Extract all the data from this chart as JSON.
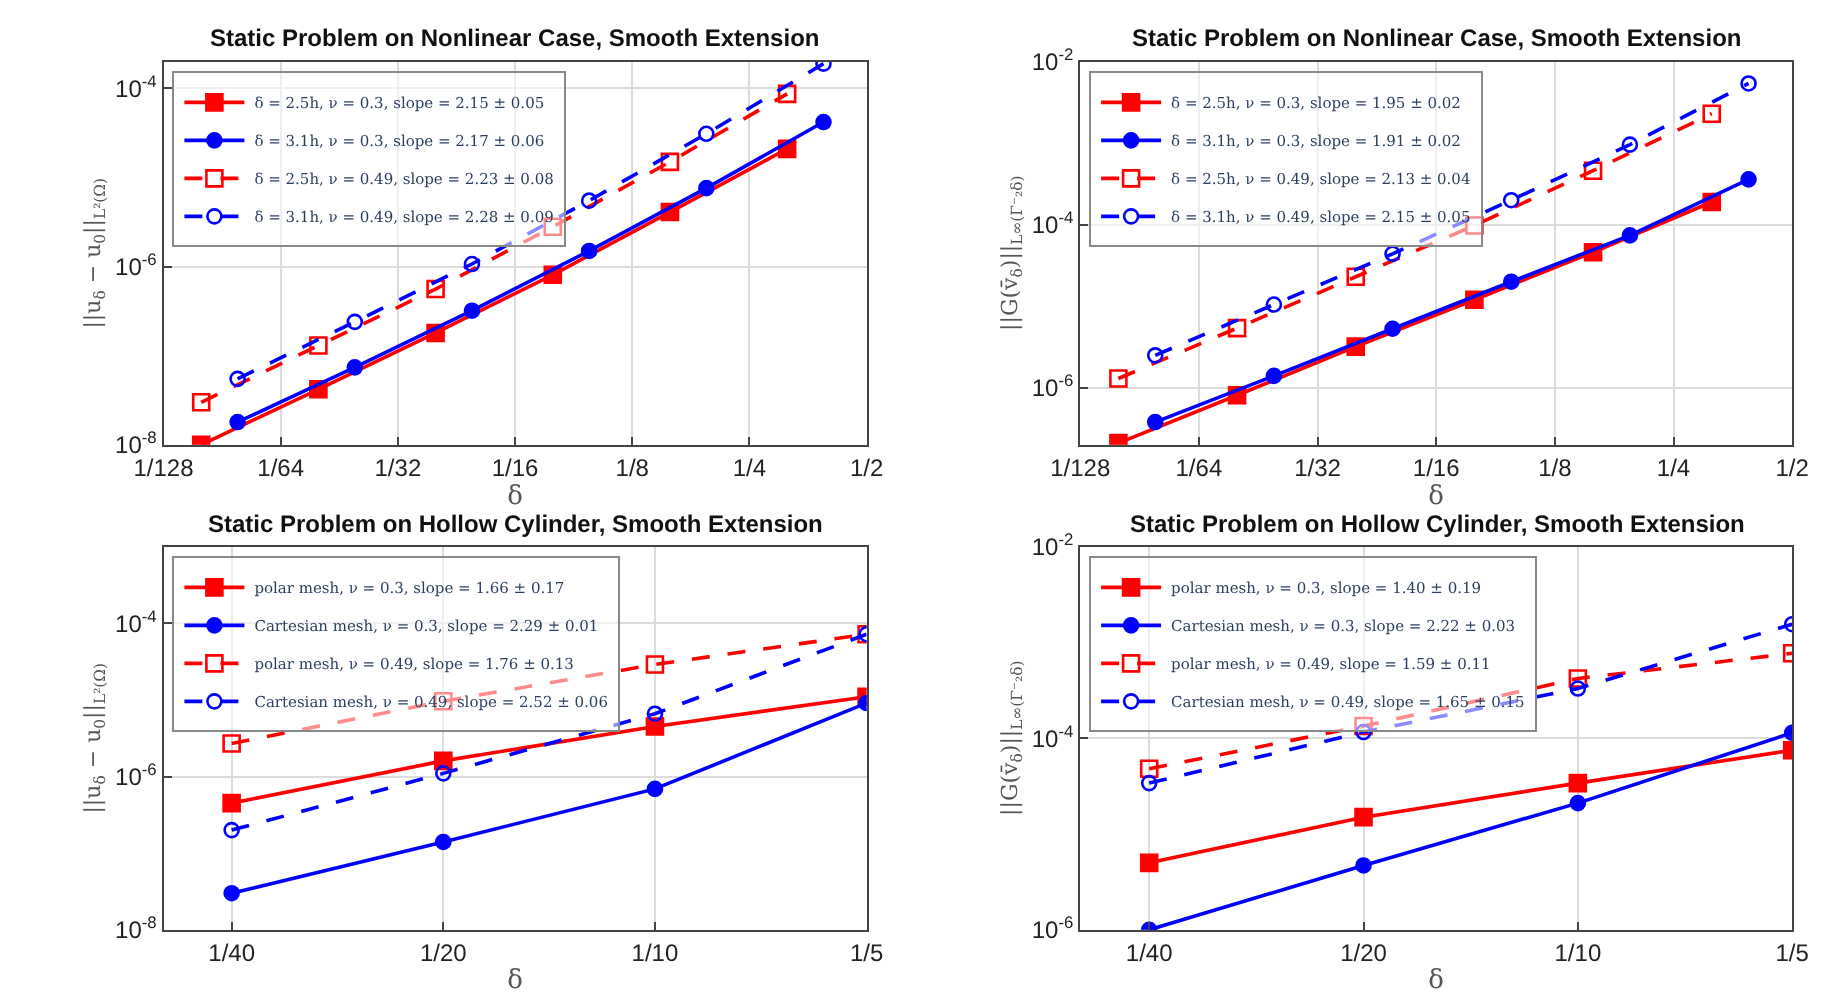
{
  "chart_data": [
    {
      "type": "line",
      "title": "Static Problem on Nonlinear Case, Smooth Extension",
      "xlabel": "δ",
      "ylabel": "||u$_{δ}$ − u$_{0}$||$_{L²(Ω)}$",
      "log": "xy",
      "grid": true,
      "legend": "top left",
      "xlim": [
        0.0078125,
        0.5
      ],
      "xticks": [
        {
          "value": 0.0078125,
          "label": "1/128"
        },
        {
          "value": 0.015625,
          "label": "1/64"
        },
        {
          "value": 0.03125,
          "label": "1/32"
        },
        {
          "value": 0.0625,
          "label": "1/16"
        },
        {
          "value": 0.125,
          "label": "1/8"
        },
        {
          "value": 0.25,
          "label": "1/4"
        },
        {
          "value": 0.5,
          "label": "1/2"
        }
      ],
      "ylim": [
        1e-08,
        0.0002
      ],
      "yticks": [
        {
          "value": 1e-08,
          "label": "10$^{-8}$"
        },
        {
          "value": 1e-06,
          "label": "10$^{-6}$"
        },
        {
          "value": 0.0001,
          "label": "10$^{-4}$"
        }
      ],
      "series": [
        {
          "name": "δ = 2.5h, ν = 0.3, slope = 2.15 ± 0.05",
          "color": "#ff0000",
          "marker": "square",
          "line_style": "solid",
          "x": [
            0.009765625,
            0.01953125,
            0.0390625,
            0.078125,
            0.15625,
            0.3125
          ],
          "values": [
            1e-08,
            4.2e-08,
            1.8e-07,
            8.1e-07,
            4.1e-06,
            2.1e-05
          ]
        },
        {
          "name": "δ = 3.1h, ν = 0.3, slope = 2.17 ± 0.06",
          "color": "#0000ff",
          "marker": "circle",
          "line_style": "solid",
          "x": [
            0.012109375,
            0.02421875,
            0.0484375,
            0.096875,
            0.19375,
            0.3875
          ],
          "values": [
            1.8e-08,
            7.4e-08,
            3.2e-07,
            1.5e-06,
            7.6e-06,
            4.2e-05
          ]
        },
        {
          "name": "δ = 2.5h, ν = 0.49, slope = 2.23 ± 0.08",
          "color": "#ff0000",
          "marker": "square",
          "line_style": "dashed",
          "x": [
            0.009765625,
            0.01953125,
            0.0390625,
            0.078125,
            0.15625,
            0.3125
          ],
          "values": [
            3e-08,
            1.3e-07,
            5.6e-07,
            2.8e-06,
            1.5e-05,
            8.7e-05
          ]
        },
        {
          "name": "δ = 3.1h, ν = 0.49, slope = 2.28 ± 0.09",
          "color": "#0000ff",
          "marker": "circle",
          "line_style": "dashed",
          "x": [
            0.012109375,
            0.02421875,
            0.0484375,
            0.096875,
            0.19375,
            0.3875
          ],
          "values": [
            5.5e-08,
            2.4e-07,
            1.07e-06,
            5.5e-06,
            3.1e-05,
            0.00019
          ]
        }
      ]
    },
    {
      "type": "line",
      "title": "Static Problem on Nonlinear Case, Smooth Extension",
      "xlabel": "δ",
      "ylabel": "||G(v̄$_{δ}$)||$_{L∞(Γ⁻₂δ)}$",
      "log": "xy",
      "grid": true,
      "legend": "top left",
      "xlim": [
        0.0078125,
        0.5
      ],
      "xticks": [
        {
          "value": 0.0078125,
          "label": "1/128"
        },
        {
          "value": 0.015625,
          "label": "1/64"
        },
        {
          "value": 0.03125,
          "label": "1/32"
        },
        {
          "value": 0.0625,
          "label": "1/16"
        },
        {
          "value": 0.125,
          "label": "1/8"
        },
        {
          "value": 0.25,
          "label": "1/4"
        },
        {
          "value": 0.5,
          "label": "1/2"
        }
      ],
      "ylim": [
        2e-07,
        0.01
      ],
      "yticks": [
        {
          "value": 1e-06,
          "label": "10$^{-6}$"
        },
        {
          "value": 0.0001,
          "label": "10$^{-4}$"
        },
        {
          "value": 0.01,
          "label": "10$^{-2}$"
        }
      ],
      "series": [
        {
          "name": "δ = 2.5h, ν = 0.3, slope = 1.95 ± 0.02",
          "color": "#ff0000",
          "marker": "square",
          "line_style": "solid",
          "x": [
            0.009765625,
            0.01953125,
            0.0390625,
            0.078125,
            0.15625,
            0.3125
          ],
          "values": [
            2.1e-07,
            8.1e-07,
            3.2e-06,
            1.2e-05,
            4.6e-05,
            0.00019
          ]
        },
        {
          "name": "δ = 3.1h, ν = 0.3, slope = 1.91 ± 0.02",
          "color": "#0000ff",
          "marker": "circle",
          "line_style": "solid",
          "x": [
            0.012109375,
            0.02421875,
            0.0484375,
            0.096875,
            0.19375,
            0.3875
          ],
          "values": [
            3.8e-07,
            1.4e-06,
            5.3e-06,
            2e-05,
            7.4e-05,
            0.00036
          ]
        },
        {
          "name": "δ = 2.5h, ν = 0.49, slope = 2.13 ± 0.04",
          "color": "#ff0000",
          "marker": "square",
          "line_style": "dashed",
          "x": [
            0.009765625,
            0.01953125,
            0.0390625,
            0.078125,
            0.15625,
            0.3125
          ],
          "values": [
            1.3e-06,
            5.4e-06,
            2.3e-05,
            9.8e-05,
            0.00046,
            0.0023
          ]
        },
        {
          "name": "δ = 3.1h, ν = 0.49, slope = 2.15 ± 0.05",
          "color": "#0000ff",
          "marker": "circle",
          "line_style": "dashed",
          "x": [
            0.012109375,
            0.02421875,
            0.0484375,
            0.096875,
            0.19375,
            0.3875
          ],
          "values": [
            2.5e-06,
            1.05e-05,
            4.4e-05,
            0.0002,
            0.00096,
            0.0054
          ]
        }
      ]
    },
    {
      "type": "line",
      "title": "Static Problem on Hollow Cylinder, Smooth Extension",
      "xlabel": "δ",
      "ylabel": "||u$_{δ}$ − u$_{0}$||$_{L²(Ω)}$",
      "log": "xy",
      "grid": true,
      "legend": "top left",
      "xlim": [
        0.02,
        0.2
      ],
      "xticks": [
        {
          "value": 0.025,
          "label": "1/40"
        },
        {
          "value": 0.05,
          "label": "1/20"
        },
        {
          "value": 0.1,
          "label": "1/10"
        },
        {
          "value": 0.2,
          "label": "1/5"
        }
      ],
      "ylim": [
        1e-08,
        0.001
      ],
      "yticks": [
        {
          "value": 1e-08,
          "label": "10$^{-8}$"
        },
        {
          "value": 1e-06,
          "label": "10$^{-6}$"
        },
        {
          "value": 0.0001,
          "label": "10$^{-4}$"
        }
      ],
      "series": [
        {
          "name": "polar mesh, ν = 0.3, slope = 1.66 ± 0.17",
          "color": "#ff0000",
          "marker": "square",
          "line_style": "solid",
          "x": [
            0.025,
            0.05,
            0.1,
            0.2
          ],
          "values": [
            4.5e-07,
            1.6e-06,
            4.5e-06,
            1.1e-05
          ]
        },
        {
          "name": "Cartesian mesh, ν = 0.3, slope = 2.29 ± 0.01",
          "color": "#0000ff",
          "marker": "circle",
          "line_style": "solid",
          "x": [
            0.025,
            0.05,
            0.1,
            0.2
          ],
          "values": [
            3e-08,
            1.4e-07,
            6.9e-07,
            9.1e-06
          ]
        },
        {
          "name": "polar mesh, ν = 0.49, slope = 1.76 ± 0.13",
          "color": "#ff0000",
          "marker": "square",
          "line_style": "dashed",
          "x": [
            0.025,
            0.05,
            0.1,
            0.2
          ],
          "values": [
            2.7e-06,
            9.6e-06,
            2.9e-05,
            7.2e-05
          ]
        },
        {
          "name": "Cartesian mesh, ν = 0.49, slope = 2.52 ± 0.06",
          "color": "#0000ff",
          "marker": "circle",
          "line_style": "dashed",
          "x": [
            0.025,
            0.05,
            0.1,
            0.2
          ],
          "values": [
            2e-07,
            1.1e-06,
            6.6e-06,
            7.2e-05
          ]
        }
      ]
    },
    {
      "type": "line",
      "title": "Static Problem on Hollow Cylinder, Smooth Extension",
      "xlabel": "δ",
      "ylabel": "||G(v̄$_{δ}$)||$_{L∞(Γ⁻₂δ)}$",
      "log": "xy",
      "grid": true,
      "legend": "top left",
      "xlim": [
        0.02,
        0.2
      ],
      "xticks": [
        {
          "value": 0.025,
          "label": "1/40"
        },
        {
          "value": 0.05,
          "label": "1/20"
        },
        {
          "value": 0.1,
          "label": "1/10"
        },
        {
          "value": 0.2,
          "label": "1/5"
        }
      ],
      "ylim": [
        1e-06,
        0.01
      ],
      "yticks": [
        {
          "value": 1e-06,
          "label": "10$^{-6}$"
        },
        {
          "value": 0.0001,
          "label": "10$^{-4}$"
        },
        {
          "value": 0.01,
          "label": "10$^{-2}$"
        }
      ],
      "series": [
        {
          "name": "polar mesh, ν = 0.3, slope = 1.40 ± 0.19",
          "color": "#ff0000",
          "marker": "square",
          "line_style": "solid",
          "x": [
            0.025,
            0.05,
            0.1,
            0.2
          ],
          "values": [
            5e-06,
            1.5e-05,
            3.4e-05,
            7.5e-05
          ]
        },
        {
          "name": "Cartesian mesh, ν = 0.3, slope = 2.22 ± 0.03",
          "color": "#0000ff",
          "marker": "circle",
          "line_style": "solid",
          "x": [
            0.025,
            0.05,
            0.1,
            0.2
          ],
          "values": [
            1e-06,
            4.7e-06,
            2.1e-05,
            0.000114
          ]
        },
        {
          "name": "polar mesh, ν = 0.49, slope = 1.59 ± 0.11",
          "color": "#ff0000",
          "marker": "square",
          "line_style": "dashed",
          "x": [
            0.025,
            0.05,
            0.1,
            0.2
          ],
          "values": [
            4.8e-05,
            0.000134,
            0.00042,
            0.00077
          ]
        },
        {
          "name": "Cartesian mesh, ν = 0.49, slope = 1.65 ± 0.15",
          "color": "#0000ff",
          "marker": "circle",
          "line_style": "dashed",
          "x": [
            0.025,
            0.05,
            0.1,
            0.2
          ],
          "values": [
            3.4e-05,
            0.000116,
            0.00033,
            0.00155
          ]
        }
      ]
    }
  ]
}
